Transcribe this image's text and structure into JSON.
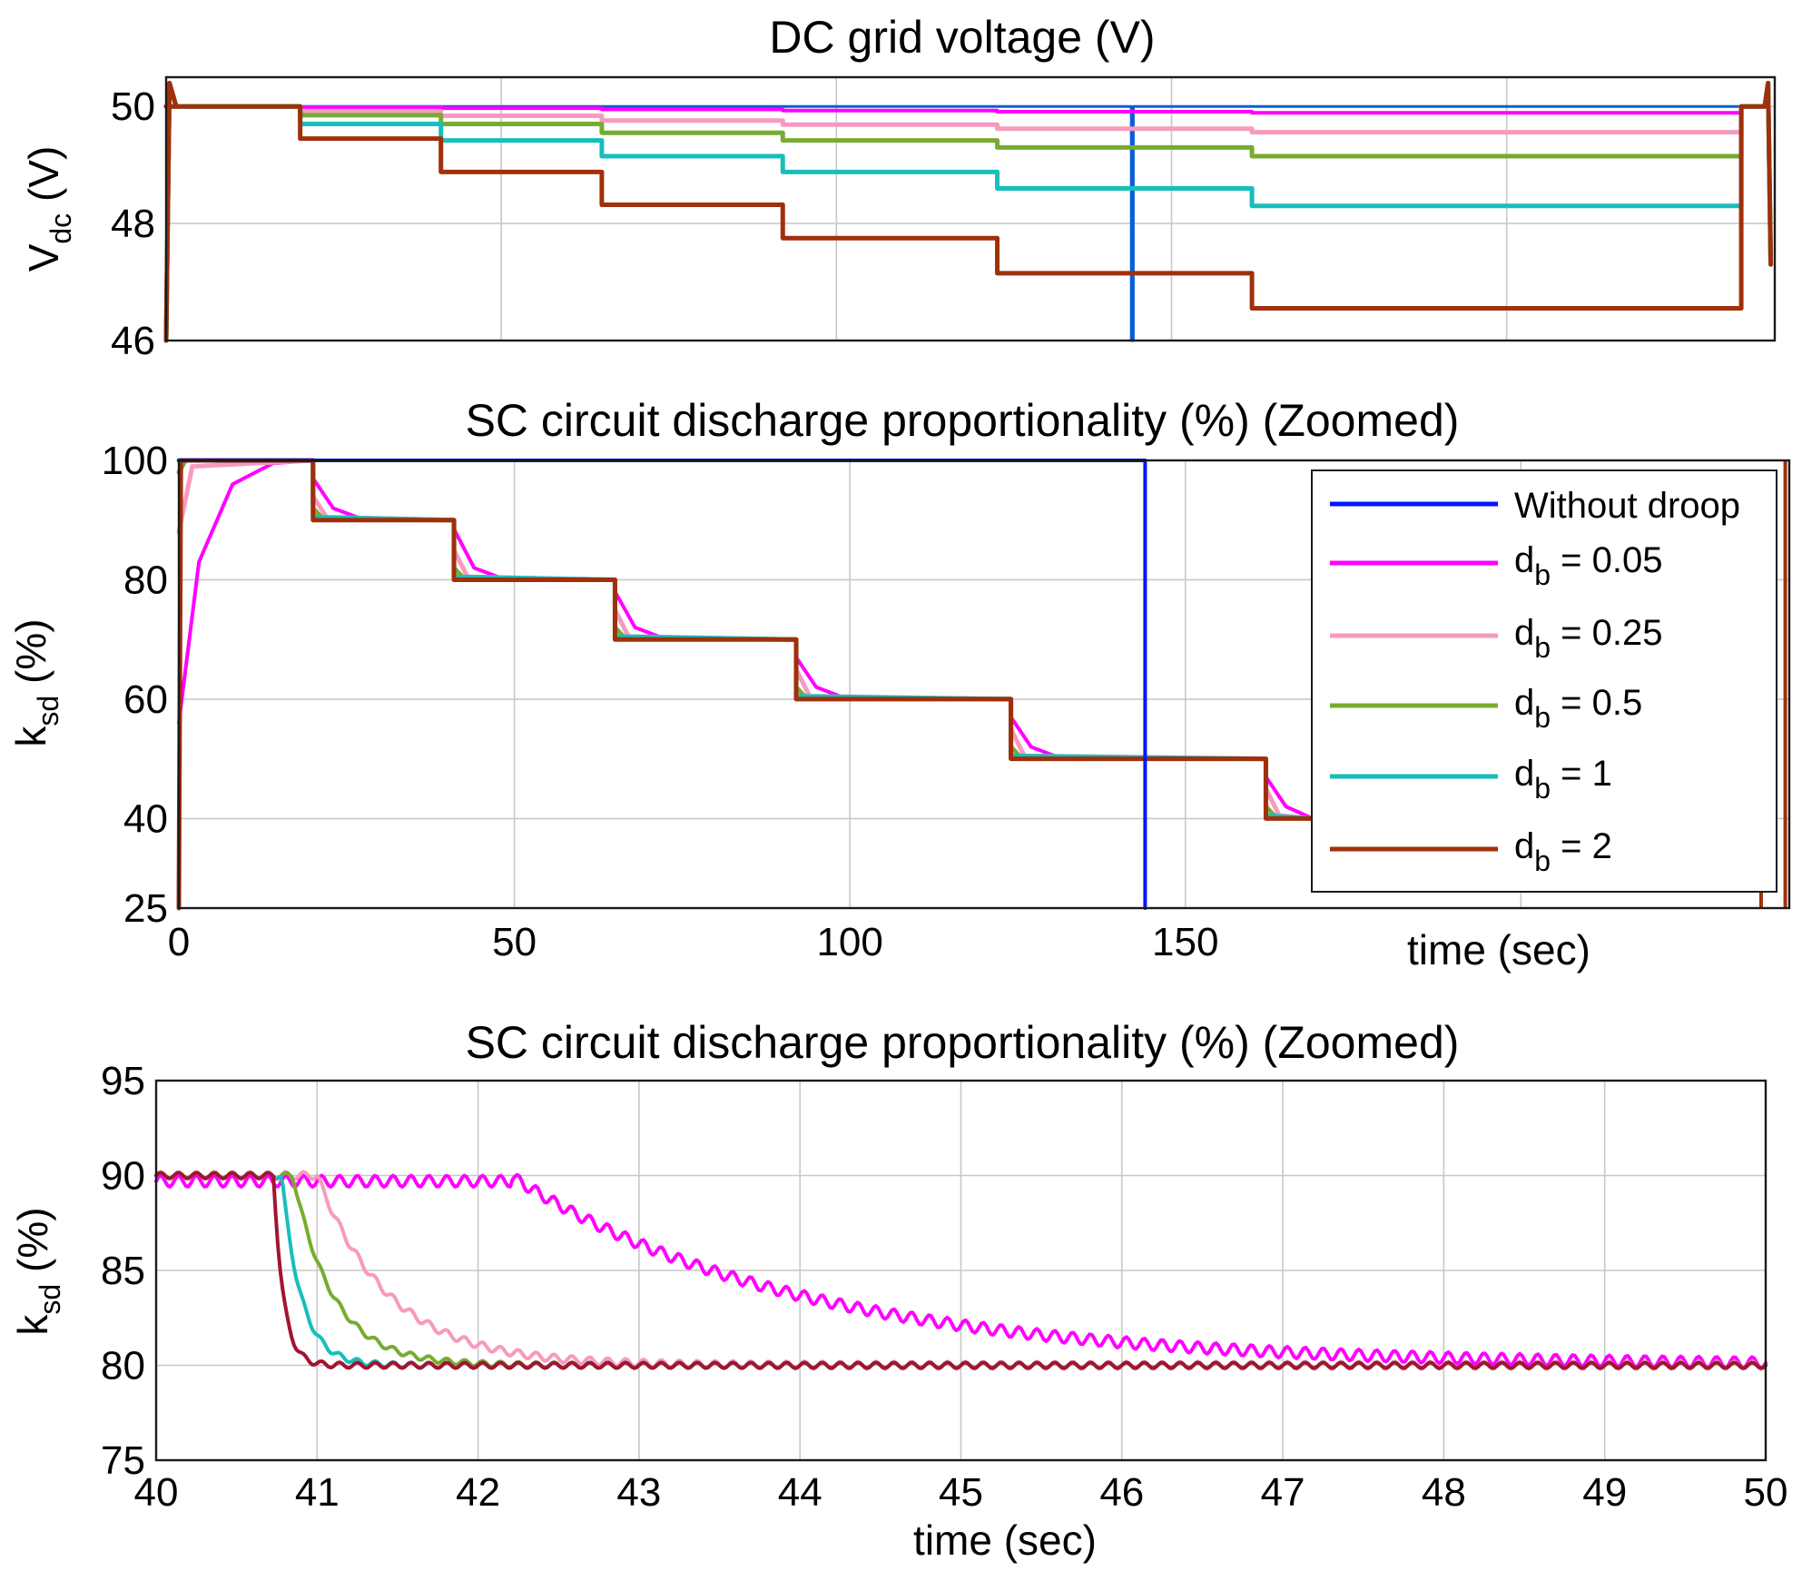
{
  "chart_data": [
    {
      "type": "line",
      "title": "DC grid voltage (V)",
      "ylabel": "V",
      "ylabel_sub": "dc",
      "ylabel_unit": "(V)",
      "xlabel": "",
      "xlim": [
        0,
        240
      ],
      "ylim": [
        46,
        50.5
      ],
      "yticks": [
        46,
        48,
        50
      ],
      "xgrid": [
        50,
        100,
        150,
        200
      ],
      "series": [
        {
          "name": "Without droop",
          "color": "#0a5fd6",
          "width": 3,
          "steps": [
            [
              0,
              50
            ],
            [
              144,
              50
            ],
            [
              144,
              46
            ],
            [
              144.3,
              50
            ],
            [
              235,
              50
            ]
          ]
        },
        {
          "name": "d_b = 0.05",
          "color": "#ff00ff",
          "width": 4,
          "steps": [
            [
              0,
              50
            ],
            [
              20,
              49.99
            ],
            [
              41,
              49.97
            ],
            [
              65,
              49.95
            ],
            [
              92,
              49.93
            ],
            [
              124,
              49.91
            ],
            [
              162,
              49.89
            ],
            [
              235,
              49.89
            ]
          ]
        },
        {
          "name": "d_b = 0.25",
          "color": "#f79ac0",
          "width": 5,
          "steps": [
            [
              0,
              50
            ],
            [
              20,
              49.92
            ],
            [
              41,
              49.84
            ],
            [
              65,
              49.76
            ],
            [
              92,
              49.69
            ],
            [
              124,
              49.62
            ],
            [
              162,
              49.56
            ],
            [
              235,
              49.56
            ]
          ]
        },
        {
          "name": "d_b = 0.5",
          "color": "#77ac30",
          "width": 5,
          "steps": [
            [
              0,
              50
            ],
            [
              20,
              49.85
            ],
            [
              41,
              49.7
            ],
            [
              65,
              49.55
            ],
            [
              92,
              49.42
            ],
            [
              124,
              49.3
            ],
            [
              162,
              49.15
            ],
            [
              235,
              49.15
            ]
          ]
        },
        {
          "name": "d_b = 1",
          "color": "#17bebb",
          "width": 5,
          "steps": [
            [
              0,
              50
            ],
            [
              20,
              49.7
            ],
            [
              41,
              49.42
            ],
            [
              65,
              49.15
            ],
            [
              92,
              48.88
            ],
            [
              124,
              48.6
            ],
            [
              162,
              48.3
            ],
            [
              235,
              48.3
            ]
          ]
        },
        {
          "name": "d_b = 2",
          "color": "#a0300b",
          "width": 5,
          "steps": [
            [
              0,
              50
            ],
            [
              20,
              49.45
            ],
            [
              41,
              48.88
            ],
            [
              65,
              48.32
            ],
            [
              92,
              47.75
            ],
            [
              124,
              47.15
            ],
            [
              162,
              46.55
            ],
            [
              235,
              46.55
            ]
          ]
        }
      ]
    },
    {
      "type": "line",
      "title": "SC circuit discharge proportionality (%) (Zoomed)",
      "ylabel": "k",
      "ylabel_sub": "sd",
      "ylabel_unit": "(%)",
      "xlabel": "time (sec)",
      "xlim": [
        0,
        240
      ],
      "ylim": [
        25,
        100
      ],
      "yticks": [
        25,
        40,
        60,
        80,
        100
      ],
      "xticks": [
        0,
        50,
        100,
        150
      ],
      "xgrid": [
        50,
        100,
        150,
        200
      ],
      "ygrid": [
        40,
        60,
        80
      ],
      "legend_position": "top-right",
      "series": [
        {
          "name": "Without droop",
          "name_main": "Without droop",
          "name_sub": "",
          "name_value": "",
          "color": "#0015ff",
          "width": 4,
          "steps": [
            [
              0,
              100
            ],
            [
              144,
              100
            ],
            [
              144,
              25
            ]
          ]
        },
        {
          "name": "d_b = 0.05",
          "name_main": "d",
          "name_sub": "b",
          "name_value": " = 0.05",
          "color": "#ff00ff",
          "width": 4,
          "steps": [
            [
              0,
              56
            ],
            [
              3,
              83
            ],
            [
              8,
              96
            ],
            [
              14,
              99.5
            ],
            [
              20,
              100
            ],
            [
              20,
              97
            ],
            [
              23,
              92
            ],
            [
              27,
              90.3
            ],
            [
              41,
              90
            ],
            [
              41,
              88.5
            ],
            [
              44,
              82
            ],
            [
              48,
              80.3
            ],
            [
              65,
              80
            ],
            [
              65,
              78
            ],
            [
              68,
              72
            ],
            [
              72,
              70.3
            ],
            [
              92,
              70
            ],
            [
              92,
              67
            ],
            [
              95,
              62
            ],
            [
              99,
              60.3
            ],
            [
              124,
              60
            ],
            [
              124,
              57
            ],
            [
              127,
              52
            ],
            [
              131,
              50.3
            ],
            [
              162,
              50
            ],
            [
              162,
              47
            ],
            [
              165,
              42
            ],
            [
              169,
              40
            ]
          ]
        },
        {
          "name": "d_b = 0.25",
          "name_main": "d",
          "name_sub": "b",
          "name_value": " = 0.25",
          "color": "#f79ac0",
          "width": 5,
          "steps": [
            [
              0,
              88
            ],
            [
              2,
              99
            ],
            [
              20,
              100
            ],
            [
              20,
              94
            ],
            [
              22,
              90.5
            ],
            [
              41,
              90
            ],
            [
              41,
              85
            ],
            [
              43,
              80.5
            ],
            [
              65,
              80
            ],
            [
              65,
              75
            ],
            [
              67,
              70.5
            ],
            [
              92,
              70
            ],
            [
              92,
              65
            ],
            [
              94,
              60.5
            ],
            [
              124,
              60
            ],
            [
              124,
              55
            ],
            [
              126,
              50.5
            ],
            [
              162,
              50
            ],
            [
              162,
              45
            ],
            [
              164,
              40.5
            ],
            [
              169,
              40
            ]
          ]
        },
        {
          "name": "d_b = 0.5",
          "name_main": "d",
          "name_sub": "b",
          "name_value": " = 0.5",
          "color": "#77ac30",
          "width": 5,
          "steps": [
            [
              0,
              98
            ],
            [
              1,
              100
            ],
            [
              20,
              100
            ],
            [
              20,
              92
            ],
            [
              21.5,
              90.2
            ],
            [
              41,
              90
            ],
            [
              41,
              82
            ],
            [
              42.5,
              80.2
            ],
            [
              65,
              80
            ],
            [
              65,
              72
            ],
            [
              66.5,
              70.2
            ],
            [
              92,
              70
            ],
            [
              92,
              62
            ],
            [
              93.5,
              60.2
            ],
            [
              124,
              60
            ],
            [
              124,
              52
            ],
            [
              125.5,
              50.2
            ],
            [
              162,
              50
            ],
            [
              162,
              42
            ],
            [
              163.5,
              40.2
            ],
            [
              169,
              40
            ]
          ]
        },
        {
          "name": "d_b = 1",
          "name_main": "d",
          "name_sub": "b",
          "name_value": " = 1",
          "color": "#17bebb",
          "width": 5,
          "steps": [
            [
              0,
              100
            ],
            [
              20,
              100
            ],
            [
              20,
              90.5
            ],
            [
              41,
              90
            ],
            [
              41,
              80.5
            ],
            [
              65,
              80
            ],
            [
              65,
              70.5
            ],
            [
              92,
              70
            ],
            [
              92,
              60.5
            ],
            [
              124,
              60
            ],
            [
              124,
              50.5
            ],
            [
              162,
              50
            ],
            [
              162,
              40.5
            ],
            [
              169,
              40
            ]
          ]
        },
        {
          "name": "d_b = 2",
          "name_main": "d",
          "name_sub": "b",
          "name_value": " = 2",
          "color": "#a0300b",
          "width": 5,
          "steps": [
            [
              0,
              25
            ],
            [
              0.3,
              100
            ],
            [
              20,
              100
            ],
            [
              20,
              90
            ],
            [
              41,
              90
            ],
            [
              41,
              80
            ],
            [
              65,
              80
            ],
            [
              65,
              70
            ],
            [
              92,
              70
            ],
            [
              92,
              60
            ],
            [
              124,
              60
            ],
            [
              124,
              50
            ],
            [
              162,
              50
            ],
            [
              162,
              40
            ],
            [
              169,
              40
            ]
          ]
        }
      ]
    },
    {
      "type": "line",
      "title": "SC circuit discharge proportionality (%) (Zoomed)",
      "ylabel": "k",
      "ylabel_sub": "sd",
      "ylabel_unit": "(%)",
      "xlabel": "time (sec)",
      "xlim": [
        40,
        50
      ],
      "ylim": [
        75,
        95
      ],
      "yticks": [
        75,
        80,
        85,
        90,
        95
      ],
      "xticks": [
        40,
        41,
        42,
        43,
        44,
        45,
        46,
        47,
        48,
        49,
        50
      ],
      "series": [
        {
          "name": "d_b = 0.05",
          "color": "#ff00ff",
          "width": 4,
          "start": 42.2,
          "tau": 1.8,
          "ripple": 0.3
        },
        {
          "name": "d_b = 0.25",
          "color": "#f79ac0",
          "width": 4,
          "start": 41.0,
          "tau": 0.45,
          "ripple": 0.2
        },
        {
          "name": "d_b = 0.5",
          "color": "#77ac30",
          "width": 4,
          "start": 40.85,
          "tau": 0.25,
          "ripple": 0.15
        },
        {
          "name": "d_b = 1",
          "color": "#17bebb",
          "width": 4,
          "start": 40.78,
          "tau": 0.12,
          "ripple": 0.15
        },
        {
          "name": "d_b = 2",
          "color": "#a2142f",
          "width": 4,
          "start": 40.73,
          "tau": 0.06,
          "ripple": 0.15
        }
      ]
    }
  ]
}
